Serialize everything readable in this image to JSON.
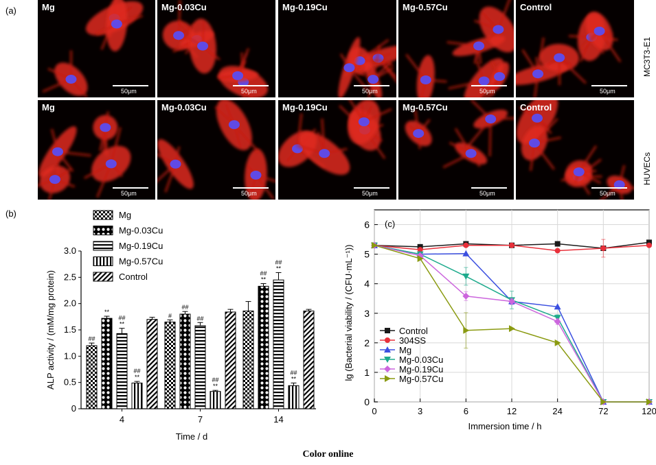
{
  "panels": {
    "a": "(a)",
    "b": "(b)",
    "c": "(c)"
  },
  "micrographs": {
    "rows": [
      {
        "label": "MC3T3-E1",
        "tiles": [
          "Mg",
          "Mg-0.03Cu",
          "Mg-0.19Cu",
          "Mg-0.57Cu",
          "Control"
        ]
      },
      {
        "label": "HUVECs",
        "tiles": [
          "Mg",
          "Mg-0.03Cu",
          "Mg-0.19Cu",
          "Mg-0.57Cu",
          "Control"
        ]
      }
    ],
    "scale_text": "50μm"
  },
  "caption": "Color online",
  "chart_data": [
    {
      "type": "bar",
      "panel": "(b)",
      "categories": [
        "4",
        "7",
        "14"
      ],
      "xlabel": "Time / d",
      "ylabel": "ALP activity / (mM/mg protein)",
      "ylim": [
        0,
        3.0
      ],
      "yticks": [
        "0",
        "0.5",
        "1.0",
        "1.5",
        "2.0",
        "2.5",
        "3.0"
      ],
      "legend_position": "top",
      "series": [
        {
          "name": "Mg",
          "values": [
            1.2,
            1.65,
            1.86
          ],
          "errors": [
            0.05,
            0.04,
            0.18
          ],
          "marks": [
            "##",
            "#",
            ""
          ]
        },
        {
          "name": "Mg-0.03Cu",
          "values": [
            1.72,
            1.8,
            2.33
          ],
          "errors": [
            0.04,
            0.05,
            0.05
          ],
          "marks": [
            "**",
            "##",
            "##\n**"
          ]
        },
        {
          "name": "Mg-0.19Cu",
          "values": [
            1.43,
            1.58,
            2.45
          ],
          "errors": [
            0.1,
            0.06,
            0.14
          ],
          "marks": [
            "##\n**",
            "##",
            "##\n**"
          ]
        },
        {
          "name": "Mg-0.57Cu",
          "values": [
            0.49,
            0.33,
            0.44
          ],
          "errors": [
            0.03,
            0.02,
            0.05
          ],
          "marks": [
            "##\n**",
            "##\n**",
            "##\n**"
          ]
        },
        {
          "name": "Control",
          "values": [
            1.7,
            1.84,
            1.86
          ],
          "errors": [
            0.04,
            0.05,
            0.03
          ],
          "marks": [
            "",
            "",
            ""
          ]
        }
      ]
    },
    {
      "type": "line",
      "panel": "(c)",
      "x": [
        "0",
        "3",
        "6",
        "12",
        "24",
        "72",
        "120"
      ],
      "xlabel": "Immersion time / h",
      "ylabel": "lg (Bacterial viability / (CFU·mL⁻¹))",
      "ylim": [
        0,
        6.5
      ],
      "yticks": [
        "0",
        "1",
        "2",
        "3",
        "4",
        "5",
        "6"
      ],
      "grid": true,
      "legend_position": "bottom-left",
      "series": [
        {
          "name": "Control",
          "color": "#1a1a1a",
          "marker": "square",
          "values": [
            5.3,
            5.25,
            5.35,
            5.3,
            5.35,
            5.2,
            5.4
          ],
          "errors": [
            0,
            0,
            0,
            0,
            0,
            0.05,
            0.05
          ]
        },
        {
          "name": "304SS",
          "color": "#e8303a",
          "marker": "circle",
          "values": [
            5.3,
            5.15,
            5.3,
            5.3,
            5.12,
            5.2,
            5.3
          ],
          "errors": [
            0,
            0,
            0,
            0,
            0,
            0.3,
            0.05
          ]
        },
        {
          "name": "Mg",
          "color": "#3b4fe0",
          "marker": "triangle-up",
          "values": [
            5.3,
            5.0,
            5.02,
            3.4,
            3.22,
            0.0,
            0.0
          ],
          "errors": [
            0,
            0,
            0,
            0.1,
            0,
            0,
            0
          ]
        },
        {
          "name": "Mg-0.03Cu",
          "color": "#1daa8c",
          "marker": "triangle-down",
          "values": [
            5.3,
            5.0,
            4.25,
            3.45,
            2.85,
            0.0,
            0.0
          ],
          "errors": [
            0,
            0,
            0.3,
            0.3,
            0.1,
            0,
            0
          ]
        },
        {
          "name": "Mg-0.19Cu",
          "color": "#cc66dd",
          "marker": "diamond",
          "values": [
            5.3,
            4.95,
            3.58,
            3.4,
            2.72,
            0.0,
            0.0
          ],
          "errors": [
            0,
            0,
            0.15,
            0.1,
            0.1,
            0,
            0
          ]
        },
        {
          "name": "Mg-0.57Cu",
          "color": "#8a9a10",
          "marker": "triangle-right",
          "values": [
            5.3,
            4.85,
            2.42,
            2.48,
            2.0,
            0.0,
            0.0
          ],
          "errors": [
            0,
            0,
            0.6,
            0,
            0,
            0,
            0
          ]
        }
      ]
    }
  ]
}
